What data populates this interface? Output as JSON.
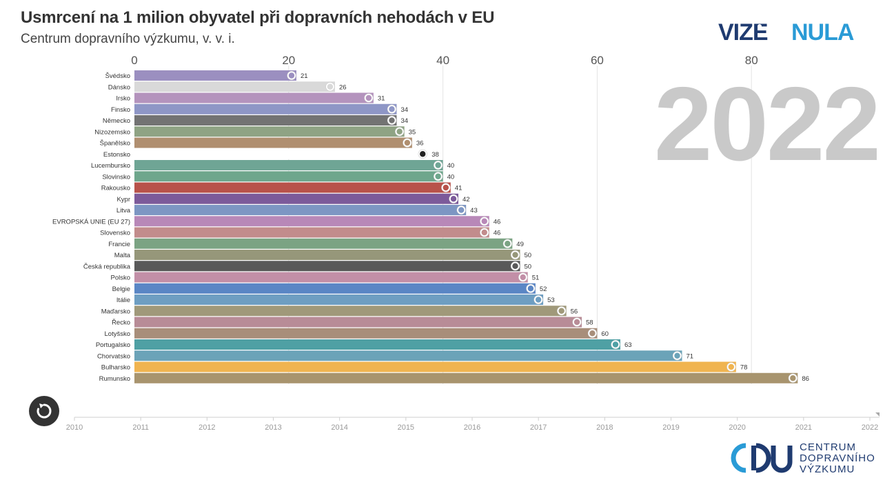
{
  "header": {
    "title": "Usmrcení na 1 milion obyvatel při dopravních nehodách v EU",
    "subtitle": "Centrum dopravního výzkumu, v. v. i."
  },
  "logos": {
    "vize_nula": "VIZE NULA",
    "cdv_line1": "CENTRUM",
    "cdv_line2": "DOPRAVNÍHO",
    "cdv_line3": "VÝZKUMU"
  },
  "controls": {
    "replay_icon": "replay-icon"
  },
  "year_label": "2022",
  "timeline": {
    "years": [
      "2010",
      "2011",
      "2012",
      "2013",
      "2014",
      "2015",
      "2016",
      "2017",
      "2018",
      "2019",
      "2020",
      "2021",
      "2022"
    ],
    "current": "2022"
  },
  "chart_data": {
    "type": "bar",
    "orientation": "horizontal",
    "title": "Usmrcení na 1 milion obyvatel při dopravních nehodách v EU",
    "xlim": [
      0,
      86
    ],
    "xticks": [
      0,
      20,
      40,
      60,
      80
    ],
    "grid": true,
    "categories": [
      "Švédsko",
      "Dánsko",
      "Irsko",
      "Finsko",
      "Německo",
      "Nizozemsko",
      "Španělsko",
      "Estonsko",
      "Lucembursko",
      "Slovinsko",
      "Rakousko",
      "Kypr",
      "Litva",
      "EVROPSKÁ UNIE (EU 27)",
      "Slovensko",
      "Francie",
      "Malta",
      "Česká republika",
      "Polsko",
      "Belgie",
      "Itálie",
      "Maďarsko",
      "Řecko",
      "Lotyšsko",
      "Portugalsko",
      "Chorvatsko",
      "Bulharsko",
      "Rumunsko"
    ],
    "values": [
      21,
      26,
      31,
      34,
      34,
      35,
      36,
      38,
      40,
      40,
      41,
      42,
      43,
      46,
      46,
      49,
      50,
      50,
      51,
      52,
      53,
      56,
      58,
      60,
      63,
      71,
      78,
      86
    ],
    "colors": [
      "#9b8fc0",
      "#d9d9d9",
      "#b493bd",
      "#8e96c6",
      "#737373",
      "#8fa384",
      "#b08f70",
      "#ffffff",
      "#6fa595",
      "#6ea68c",
      "#b8524a",
      "#7c5a9a",
      "#7d96c3",
      "#b888b8",
      "#c28c8c",
      "#7ba383",
      "#96977a",
      "#595959",
      "#c28fa7",
      "#5a86c5",
      "#6e9ec2",
      "#a0997a",
      "#b88c97",
      "#a88e7a",
      "#4fa0a4",
      "#6ba3b8",
      "#f0b450",
      "#a8946e"
    ]
  }
}
